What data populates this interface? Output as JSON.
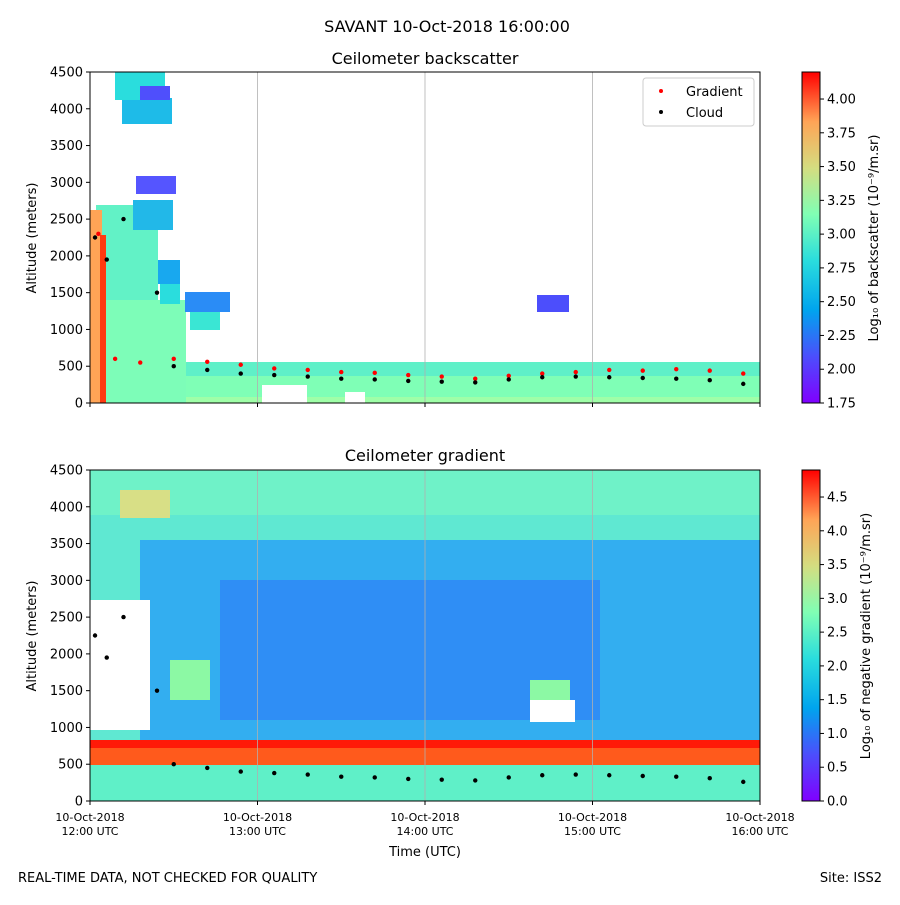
{
  "figure": {
    "suptitle": "SAVANT 10-Oct-2018 16:00:00",
    "footer_left": "REAL-TIME DATA, NOT CHECKED FOR QUALITY",
    "footer_right": "Site: ISS2"
  },
  "colors": {
    "gradient_marker": "#ff0000",
    "cloud_marker": "#000000",
    "grid": "#b0b0b0",
    "colormap": "rainbow"
  },
  "chart_data": [
    {
      "type": "heatmap",
      "title": "Ceilometer backscatter",
      "ylabel": "Altitude (meters)",
      "xlabel": "",
      "ylim": [
        0,
        4500
      ],
      "yticks": [
        "0",
        "500",
        "1000",
        "1500",
        "2000",
        "2500",
        "3000",
        "3500",
        "4000",
        "4500"
      ],
      "xlim_hours": [
        12,
        16
      ],
      "xtick_labels_shown": false,
      "grid": "vertical",
      "legend": {
        "placement": "top-right",
        "entries": [
          {
            "label": "Gradient",
            "color": "#ff0000"
          },
          {
            "label": "Cloud",
            "color": "#000000"
          }
        ]
      },
      "colorbar": {
        "range": [
          1.75,
          4.2
        ],
        "ticks": [
          "1.75",
          "2.00",
          "2.25",
          "2.50",
          "2.75",
          "3.00",
          "3.25",
          "3.50",
          "3.75",
          "4.00"
        ],
        "label": "Log₁₀ of backscatter (10⁻⁹/m.sr)"
      },
      "series": [
        {
          "name": "Gradient",
          "kind": "scatter",
          "x_hours": [
            12.05,
            12.15,
            12.3,
            12.5,
            12.7,
            12.9,
            13.1,
            13.3,
            13.5,
            13.7,
            13.9,
            14.1,
            14.3,
            14.5,
            14.7,
            14.9,
            15.1,
            15.3,
            15.5,
            15.7,
            15.9
          ],
          "y": [
            2300,
            600,
            550,
            600,
            560,
            520,
            470,
            450,
            420,
            410,
            380,
            360,
            330,
            370,
            400,
            420,
            450,
            440,
            460,
            440,
            400
          ]
        },
        {
          "name": "Cloud",
          "kind": "scatter",
          "x_hours": [
            12.03,
            12.1,
            12.2,
            12.4,
            12.5,
            12.7,
            12.9,
            13.1,
            13.3,
            13.5,
            13.7,
            13.9,
            14.1,
            14.3,
            14.5,
            14.7,
            14.9,
            15.1,
            15.3,
            15.5,
            15.7,
            15.9
          ],
          "y": [
            2250,
            1950,
            2500,
            1500,
            500,
            450,
            400,
            380,
            360,
            330,
            320,
            300,
            290,
            280,
            320,
            350,
            360,
            350,
            340,
            330,
            310,
            260
          ]
        }
      ]
    },
    {
      "type": "heatmap",
      "title": "Ceilometer gradient",
      "ylabel": "Altitude (meters)",
      "xlabel": "Time (UTC)",
      "ylim": [
        0,
        4500
      ],
      "yticks": [
        "0",
        "500",
        "1000",
        "1500",
        "2000",
        "2500",
        "3000",
        "3500",
        "4000",
        "4500"
      ],
      "xlim_hours": [
        12,
        16
      ],
      "grid": "vertical",
      "xticks": [
        {
          "hour": 12,
          "line1": "10-Oct-2018",
          "line2": "12:00 UTC"
        },
        {
          "hour": 13,
          "line1": "10-Oct-2018",
          "line2": "13:00 UTC"
        },
        {
          "hour": 14,
          "line1": "10-Oct-2018",
          "line2": "14:00 UTC"
        },
        {
          "hour": 15,
          "line1": "10-Oct-2018",
          "line2": "15:00 UTC"
        },
        {
          "hour": 16,
          "line1": "10-Oct-2018",
          "line2": "16:00 UTC"
        }
      ],
      "colorbar": {
        "range": [
          0,
          4.9
        ],
        "ticks": [
          "0.0",
          "0.5",
          "1.0",
          "1.5",
          "2.0",
          "2.5",
          "3.0",
          "3.5",
          "4.0",
          "4.5"
        ],
        "label": "Log₁₀ of negative gradient (10⁻⁹/m.sr)"
      },
      "series": [
        {
          "name": "Cloud",
          "kind": "scatter",
          "x_hours": [
            12.03,
            12.1,
            12.2,
            12.4,
            12.5,
            12.7,
            12.9,
            13.1,
            13.3,
            13.5,
            13.7,
            13.9,
            14.1,
            14.3,
            14.5,
            14.7,
            14.9,
            15.1,
            15.3,
            15.5,
            15.7,
            15.9
          ],
          "y": [
            2250,
            1950,
            2500,
            1500,
            500,
            450,
            400,
            380,
            360,
            330,
            320,
            300,
            290,
            280,
            320,
            350,
            360,
            350,
            340,
            330,
            310,
            260
          ]
        }
      ]
    }
  ]
}
